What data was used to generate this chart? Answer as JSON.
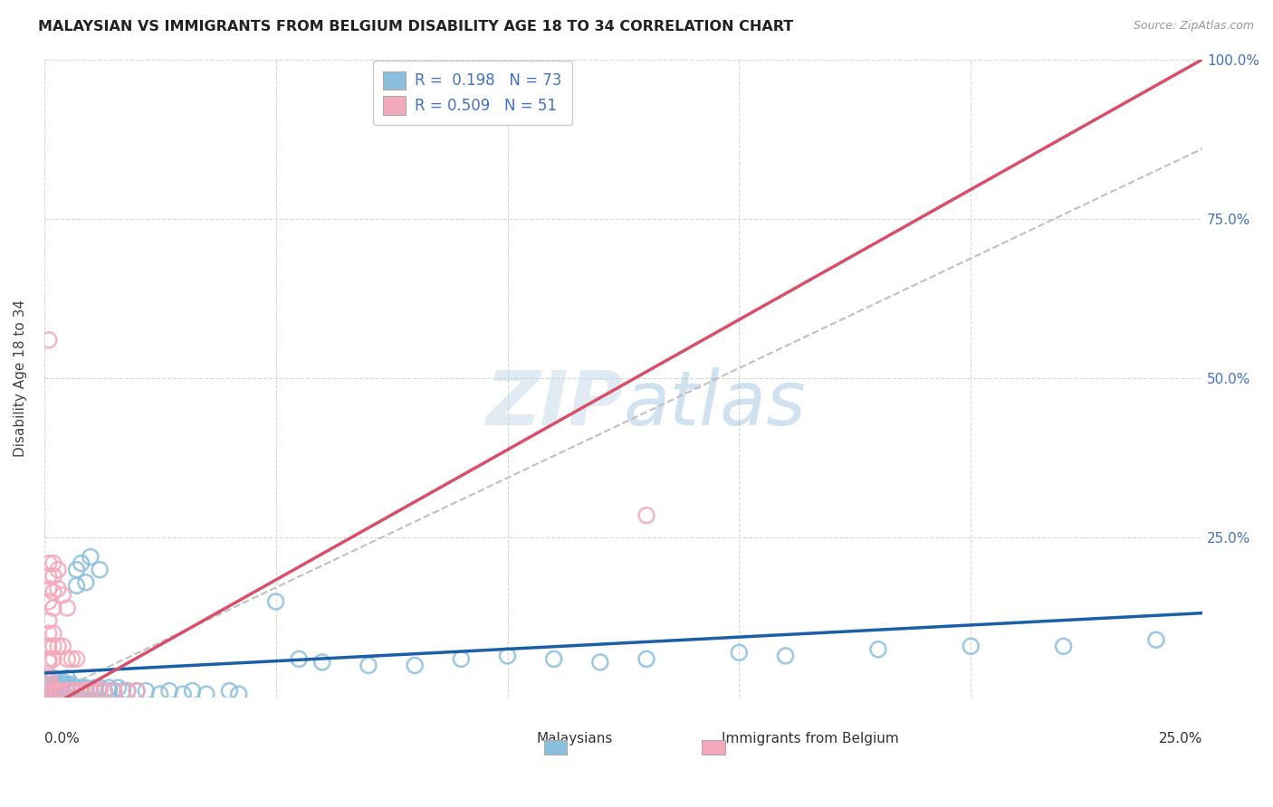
{
  "title": "MALAYSIAN VS IMMIGRANTS FROM BELGIUM DISABILITY AGE 18 TO 34 CORRELATION CHART",
  "source": "Source: ZipAtlas.com",
  "ylabel": "Disability Age 18 to 34",
  "legend_label1": "Malaysians",
  "legend_label2": "Immigrants from Belgium",
  "r1": 0.198,
  "n1": 73,
  "r2": 0.509,
  "n2": 51,
  "color_blue": "#8bbfde",
  "color_pink": "#f4a8bc",
  "color_blue_line": "#1a5fa8",
  "color_pink_line": "#d94f6a",
  "color_ref_line": "#c0c0c0",
  "xmin": 0.0,
  "xmax": 0.25,
  "ymin": 0.0,
  "ymax": 1.0,
  "yticks": [
    0.0,
    0.25,
    0.5,
    0.75,
    1.0
  ],
  "ytick_labels": [
    "",
    "25.0%",
    "50.0%",
    "75.0%",
    "100.0%"
  ],
  "blue_trend_x0": 0.0,
  "blue_trend_y0": 0.038,
  "blue_trend_x1": 0.25,
  "blue_trend_y1": 0.132,
  "pink_trend_x0": 0.0,
  "pink_trend_y0": -0.02,
  "pink_trend_x1": 0.25,
  "pink_trend_y1": 1.0,
  "ref_line_x0": 0.0,
  "ref_line_y0": 0.0,
  "ref_line_x1": 0.25,
  "ref_line_y1": 0.86,
  "malaysian_x": [
    0.001,
    0.001,
    0.001,
    0.001,
    0.002,
    0.002,
    0.002,
    0.002,
    0.002,
    0.003,
    0.003,
    0.003,
    0.003,
    0.003,
    0.003,
    0.004,
    0.004,
    0.004,
    0.004,
    0.005,
    0.005,
    0.005,
    0.005,
    0.006,
    0.006,
    0.006,
    0.007,
    0.007,
    0.007,
    0.008,
    0.008,
    0.008,
    0.009,
    0.009,
    0.009,
    0.01,
    0.01,
    0.011,
    0.011,
    0.012,
    0.012,
    0.013,
    0.014,
    0.014,
    0.015,
    0.016,
    0.017,
    0.018,
    0.02,
    0.022,
    0.025,
    0.027,
    0.03,
    0.032,
    0.035,
    0.04,
    0.042,
    0.05,
    0.055,
    0.06,
    0.07,
    0.08,
    0.09,
    0.1,
    0.11,
    0.12,
    0.13,
    0.15,
    0.16,
    0.18,
    0.2,
    0.22,
    0.24
  ],
  "malaysian_y": [
    0.01,
    0.02,
    0.015,
    0.005,
    0.01,
    0.02,
    0.015,
    0.03,
    0.005,
    0.01,
    0.02,
    0.015,
    0.025,
    0.005,
    0.01,
    0.02,
    0.01,
    0.025,
    0.005,
    0.03,
    0.015,
    0.01,
    0.02,
    0.015,
    0.02,
    0.01,
    0.2,
    0.175,
    0.01,
    0.21,
    0.015,
    0.01,
    0.18,
    0.015,
    0.01,
    0.22,
    0.01,
    0.015,
    0.01,
    0.2,
    0.015,
    0.01,
    0.015,
    0.01,
    0.01,
    0.015,
    0.01,
    0.01,
    0.01,
    0.01,
    0.005,
    0.01,
    0.005,
    0.01,
    0.005,
    0.01,
    0.005,
    0.15,
    0.06,
    0.055,
    0.05,
    0.05,
    0.06,
    0.065,
    0.06,
    0.055,
    0.06,
    0.07,
    0.065,
    0.075,
    0.08,
    0.08,
    0.09
  ],
  "belgium_x": [
    0.001,
    0.001,
    0.001,
    0.001,
    0.001,
    0.001,
    0.001,
    0.001,
    0.001,
    0.001,
    0.001,
    0.001,
    0.001,
    0.001,
    0.001,
    0.002,
    0.002,
    0.002,
    0.002,
    0.002,
    0.002,
    0.002,
    0.002,
    0.002,
    0.003,
    0.003,
    0.003,
    0.003,
    0.003,
    0.004,
    0.004,
    0.004,
    0.004,
    0.005,
    0.005,
    0.005,
    0.006,
    0.006,
    0.007,
    0.007,
    0.008,
    0.009,
    0.01,
    0.011,
    0.012,
    0.013,
    0.015,
    0.018,
    0.02,
    0.13,
    0.001
  ],
  "belgium_y": [
    0.005,
    0.01,
    0.015,
    0.02,
    0.025,
    0.03,
    0.055,
    0.06,
    0.08,
    0.1,
    0.12,
    0.15,
    0.17,
    0.19,
    0.21,
    0.005,
    0.01,
    0.06,
    0.08,
    0.1,
    0.14,
    0.165,
    0.19,
    0.21,
    0.005,
    0.01,
    0.08,
    0.17,
    0.2,
    0.005,
    0.01,
    0.08,
    0.16,
    0.01,
    0.06,
    0.14,
    0.01,
    0.06,
    0.01,
    0.06,
    0.01,
    0.01,
    0.01,
    0.01,
    0.01,
    0.01,
    0.01,
    0.01,
    0.01,
    0.285,
    0.56
  ]
}
